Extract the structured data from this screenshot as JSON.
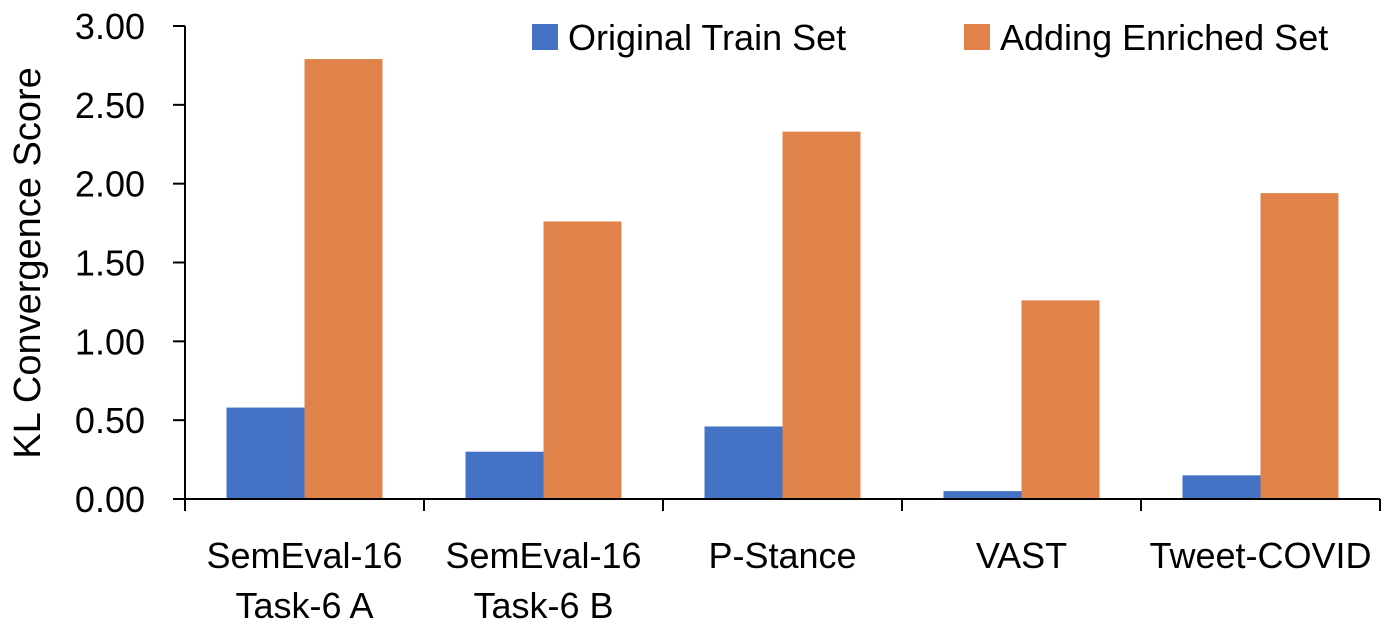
{
  "chart_data": {
    "type": "bar",
    "title": "",
    "xlabel": "",
    "ylabel": "KL Convergence Score",
    "ylim": [
      0,
      3
    ],
    "yticks": [
      "0.00",
      "0.50",
      "1.00",
      "1.50",
      "2.00",
      "2.50",
      "3.00"
    ],
    "ytick_values": [
      0,
      0.5,
      1,
      1.5,
      2,
      2.5,
      3
    ],
    "grid": false,
    "legend_position": "top-right",
    "categories": [
      [
        "SemEval-16",
        "Task-6 A"
      ],
      [
        "SemEval-16",
        "Task-6 B"
      ],
      [
        "P-Stance"
      ],
      [
        "VAST"
      ],
      [
        "Tweet-COVID"
      ]
    ],
    "series": [
      {
        "name": "Original Train Set",
        "color": "#4472C4",
        "values": [
          0.58,
          0.3,
          0.46,
          0.05,
          0.15
        ]
      },
      {
        "name": "Adding Enriched Set",
        "color": "#E0834A",
        "values": [
          2.79,
          1.76,
          2.33,
          1.26,
          1.94
        ]
      }
    ]
  }
}
